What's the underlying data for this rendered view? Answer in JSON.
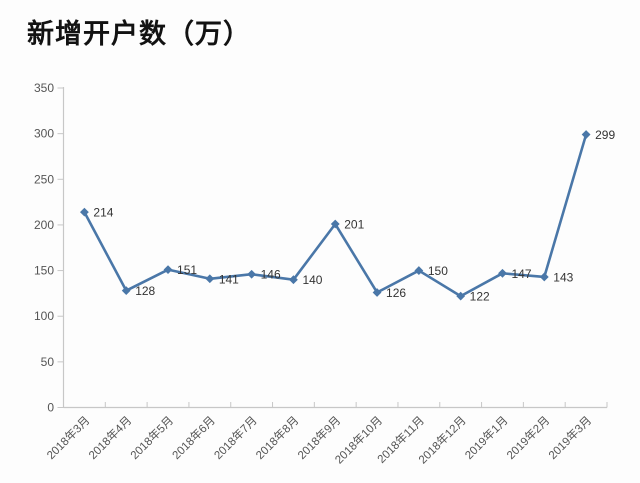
{
  "chart_data": {
    "type": "line",
    "title": "新增开户数（万）",
    "categories": [
      "2018年3月",
      "2018年4月",
      "2018年5月",
      "2018年6月",
      "2018年7月",
      "2018年8月",
      "2018年9月",
      "2018年10月",
      "2018年11月",
      "2018年12月",
      "2019年1月",
      "2019年2月",
      "2019年3月"
    ],
    "values": [
      214,
      128,
      151,
      141,
      146,
      140,
      201,
      126,
      150,
      122,
      147,
      143,
      299
    ],
    "ylim": [
      0,
      350
    ],
    "yticks": [
      0,
      50,
      100,
      150,
      200,
      250,
      300,
      350
    ],
    "xlabel": "",
    "ylabel": "",
    "grid": false,
    "legend_position": "none",
    "marker": "diamond",
    "data_label_position": "right",
    "colors": {
      "line": "#4a77a8",
      "marker": "#4a77a8",
      "axis": "#c7c7c7",
      "tick_label": "#555555",
      "data_label": "#343434",
      "title": "#121212",
      "background": "#fdfdfd"
    }
  }
}
